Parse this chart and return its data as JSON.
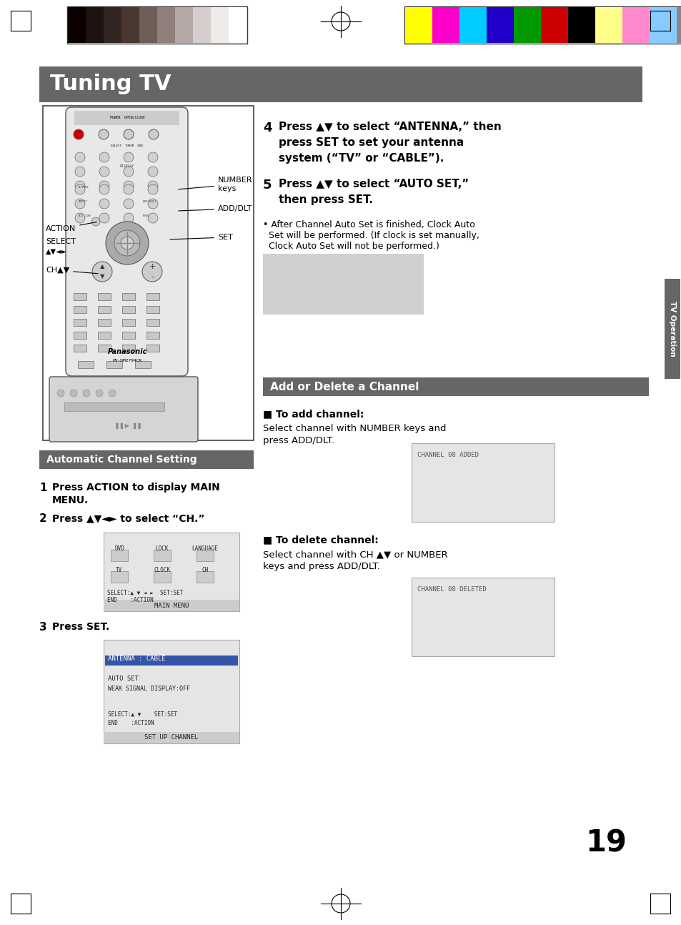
{
  "page_bg": "#ffffff",
  "header_bar_color": "#666666",
  "header_text": "Tuning TV",
  "header_text_color": "#ffffff",
  "section2_bar_color": "#666666",
  "section2_text": "Automatic Channel Setting",
  "section3_bar_color": "#666666",
  "section3_text": "Add or Delete a Channel",
  "side_tab_color": "#666666",
  "side_tab_text": "TV Operation",
  "page_number": "19",
  "color_bars_left": [
    "#1a0800",
    "#2d1a0a",
    "#3d2b18",
    "#5a4030",
    "#7a6255",
    "#9a8880",
    "#baaaaa",
    "#d4cac8",
    "#ede8e5",
    "#ffffff"
  ],
  "color_bars_right": [
    "#ffff00",
    "#ff00bb",
    "#00ccff",
    "#2222cc",
    "#009900",
    "#cc0000",
    "#000000",
    "#ffff88",
    "#ff88cc",
    "#88ccff",
    "#888888"
  ],
  "body_text_color": "#000000",
  "note_bg": "#d0d0d0",
  "screen_bg": "#e0e0e0",
  "highlight_color": "#3355aa"
}
